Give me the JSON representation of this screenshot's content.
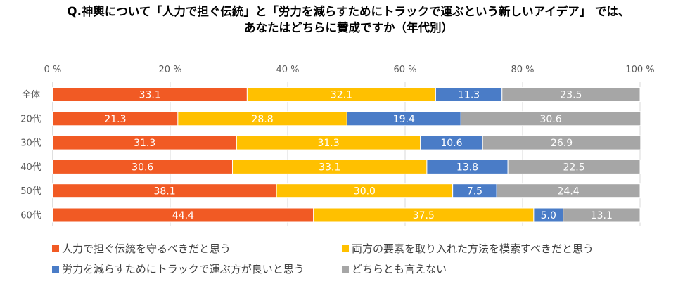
{
  "title": {
    "line1": "Q.神輿について「人力で担ぐ伝統」と「労力を減らすためにトラックで運ぶという新しいアイデア」 では、",
    "line2": "あなたはどちらに賛成ですか（年代別）"
  },
  "chart_data": {
    "type": "bar",
    "orientation": "horizontal",
    "stacked": true,
    "title": "Q.神輿について「人力で担ぐ伝統」と「労力を減らすためにトラックで運ぶという新しいアイデア」 では、あなたはどちらに賛成ですか（年代別）",
    "xlabel": "",
    "ylabel": "",
    "xlim": [
      0,
      100
    ],
    "x_ticks": [
      "0 %",
      "20 %",
      "40 %",
      "60 %",
      "80 %",
      "100 %"
    ],
    "x_tick_values": [
      0,
      20,
      40,
      60,
      80,
      100
    ],
    "grid": true,
    "legend_position": "bottom",
    "categories": [
      "全体",
      "20代",
      "30代",
      "40代",
      "50代",
      "60代"
    ],
    "series": [
      {
        "name": "人力で担ぐ伝統を守るべきだと思う",
        "color": "#F15A24",
        "values": [
          33.1,
          21.3,
          31.3,
          30.6,
          38.1,
          44.4
        ]
      },
      {
        "name": "両方の要素を取り入れた方法を模索すべきだと思う",
        "color": "#FFC000",
        "values": [
          32.1,
          28.8,
          31.3,
          33.1,
          30.0,
          37.5
        ]
      },
      {
        "name": "労力を減らすためにトラックで運ぶ方が良いと思う",
        "color": "#4A7CC7",
        "values": [
          11.3,
          19.4,
          10.6,
          13.8,
          7.5,
          5.0
        ]
      },
      {
        "name": "どちらとも言えない",
        "color": "#A6A6A6",
        "values": [
          23.5,
          30.6,
          26.9,
          22.5,
          24.4,
          13.1
        ]
      }
    ]
  }
}
